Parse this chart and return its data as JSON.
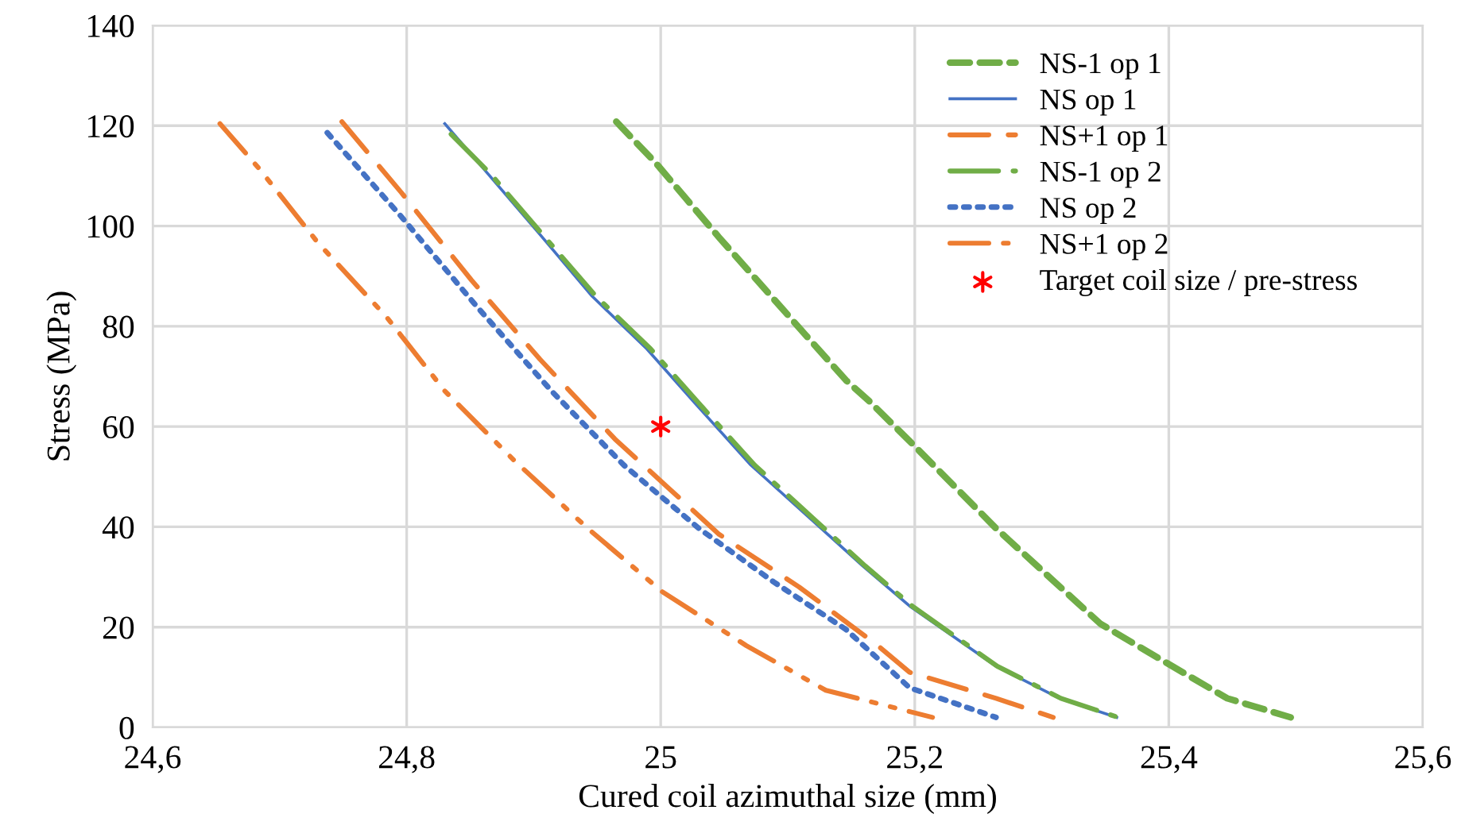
{
  "chart_data": {
    "type": "line",
    "xlabel": "Cured coil azimuthal size (mm)",
    "ylabel": "Stress (MPa)",
    "xlim": [
      24.6,
      25.6
    ],
    "xticks": [
      {
        "value": 24.6,
        "label": "24,6"
      },
      {
        "value": 24.8,
        "label": "24,8"
      },
      {
        "value": 25,
        "label": "25"
      },
      {
        "value": 25.2,
        "label": "25,2"
      },
      {
        "value": 25.4,
        "label": "25,4"
      },
      {
        "value": 25.6,
        "label": "25,6"
      }
    ],
    "ylim": [
      0,
      140
    ],
    "yticks": [
      0,
      20,
      40,
      60,
      80,
      100,
      120,
      140
    ],
    "grid": true,
    "legend": "top right",
    "series": [
      {
        "name": "NS-1 op 1",
        "color": "#70ad47",
        "line_style": "dashed",
        "x": [
          24.965,
          24.996,
          25.046,
          25.109,
          25.146,
          25.164,
          25.196,
          25.264,
          25.346,
          25.396,
          25.446,
          25.496
        ],
        "values": [
          120.8,
          112.6,
          97.7,
          79.7,
          69.2,
          65.1,
          57.1,
          39.7,
          20.7,
          13.2,
          5.8,
          2.0
        ]
      },
      {
        "name": "NS op 1",
        "color": "#4472c4",
        "line_style": "solid",
        "x": [
          24.83,
          24.864,
          24.905,
          24.946,
          24.989,
          25.03,
          25.071,
          25.1175,
          25.159,
          25.196,
          25.264,
          25.314,
          25.359
        ],
        "values": [
          120.4,
          110.4,
          98.3,
          86.0,
          75.5,
          63.8,
          52.3,
          41.7,
          32.2,
          24.2,
          12.2,
          5.8,
          2.0
        ]
      },
      {
        "name": "NS+1 op 1",
        "color": "#ed7d31",
        "line_style": "longdash",
        "x": [
          24.749,
          24.796,
          24.851,
          24.905,
          24.964,
          25.005,
          25.046,
          25.109,
          25.171,
          25.196,
          25.264,
          25.309
        ],
        "values": [
          120.8,
          106.6,
          89.2,
          73.4,
          57.5,
          48.0,
          38.5,
          28.0,
          16.3,
          11.0,
          5.8,
          2.0
        ]
      },
      {
        "name": "NS-1 op 2",
        "color": "#70ad47",
        "line_style": "longdashdot",
        "x": [
          24.835,
          24.866,
          24.907,
          24.949,
          24.992,
          25.033,
          25.074,
          25.12,
          25.161,
          25.198,
          25.265,
          25.315,
          25.36
        ],
        "values": [
          118.3,
          110.4,
          98.3,
          86.0,
          75.5,
          63.8,
          52.3,
          41.7,
          32.2,
          24.2,
          12.2,
          5.8,
          2.0
        ]
      },
      {
        "name": "NS op 2",
        "color": "#4472c4",
        "line_style": "dotted",
        "x": [
          24.7375,
          24.796,
          24.855,
          24.914,
          24.971,
          25.03,
          25.089,
          25.146,
          25.196,
          25.264
        ],
        "values": [
          118.6,
          101.8,
          84.0,
          67.1,
          52.3,
          39.7,
          29.0,
          19.5,
          7.9,
          2.0
        ]
      },
      {
        "name": "NS+1 op 2",
        "color": "#ed7d31",
        "line_style": "dashdotdot",
        "x": [
          24.653,
          24.684,
          24.73,
          24.784,
          24.83,
          24.884,
          24.9425,
          25.001,
          25.0675,
          25.13,
          25.214
        ],
        "values": [
          120.4,
          111.4,
          96.7,
          81.9,
          67.1,
          53.4,
          39.7,
          27.1,
          16.3,
          7.4,
          2.0
        ]
      },
      {
        "name": "Target coil size / pre-stress",
        "type": "scatter",
        "color": "#ff0000",
        "marker": "cross",
        "x": [
          25
        ],
        "values": [
          60
        ]
      }
    ]
  }
}
